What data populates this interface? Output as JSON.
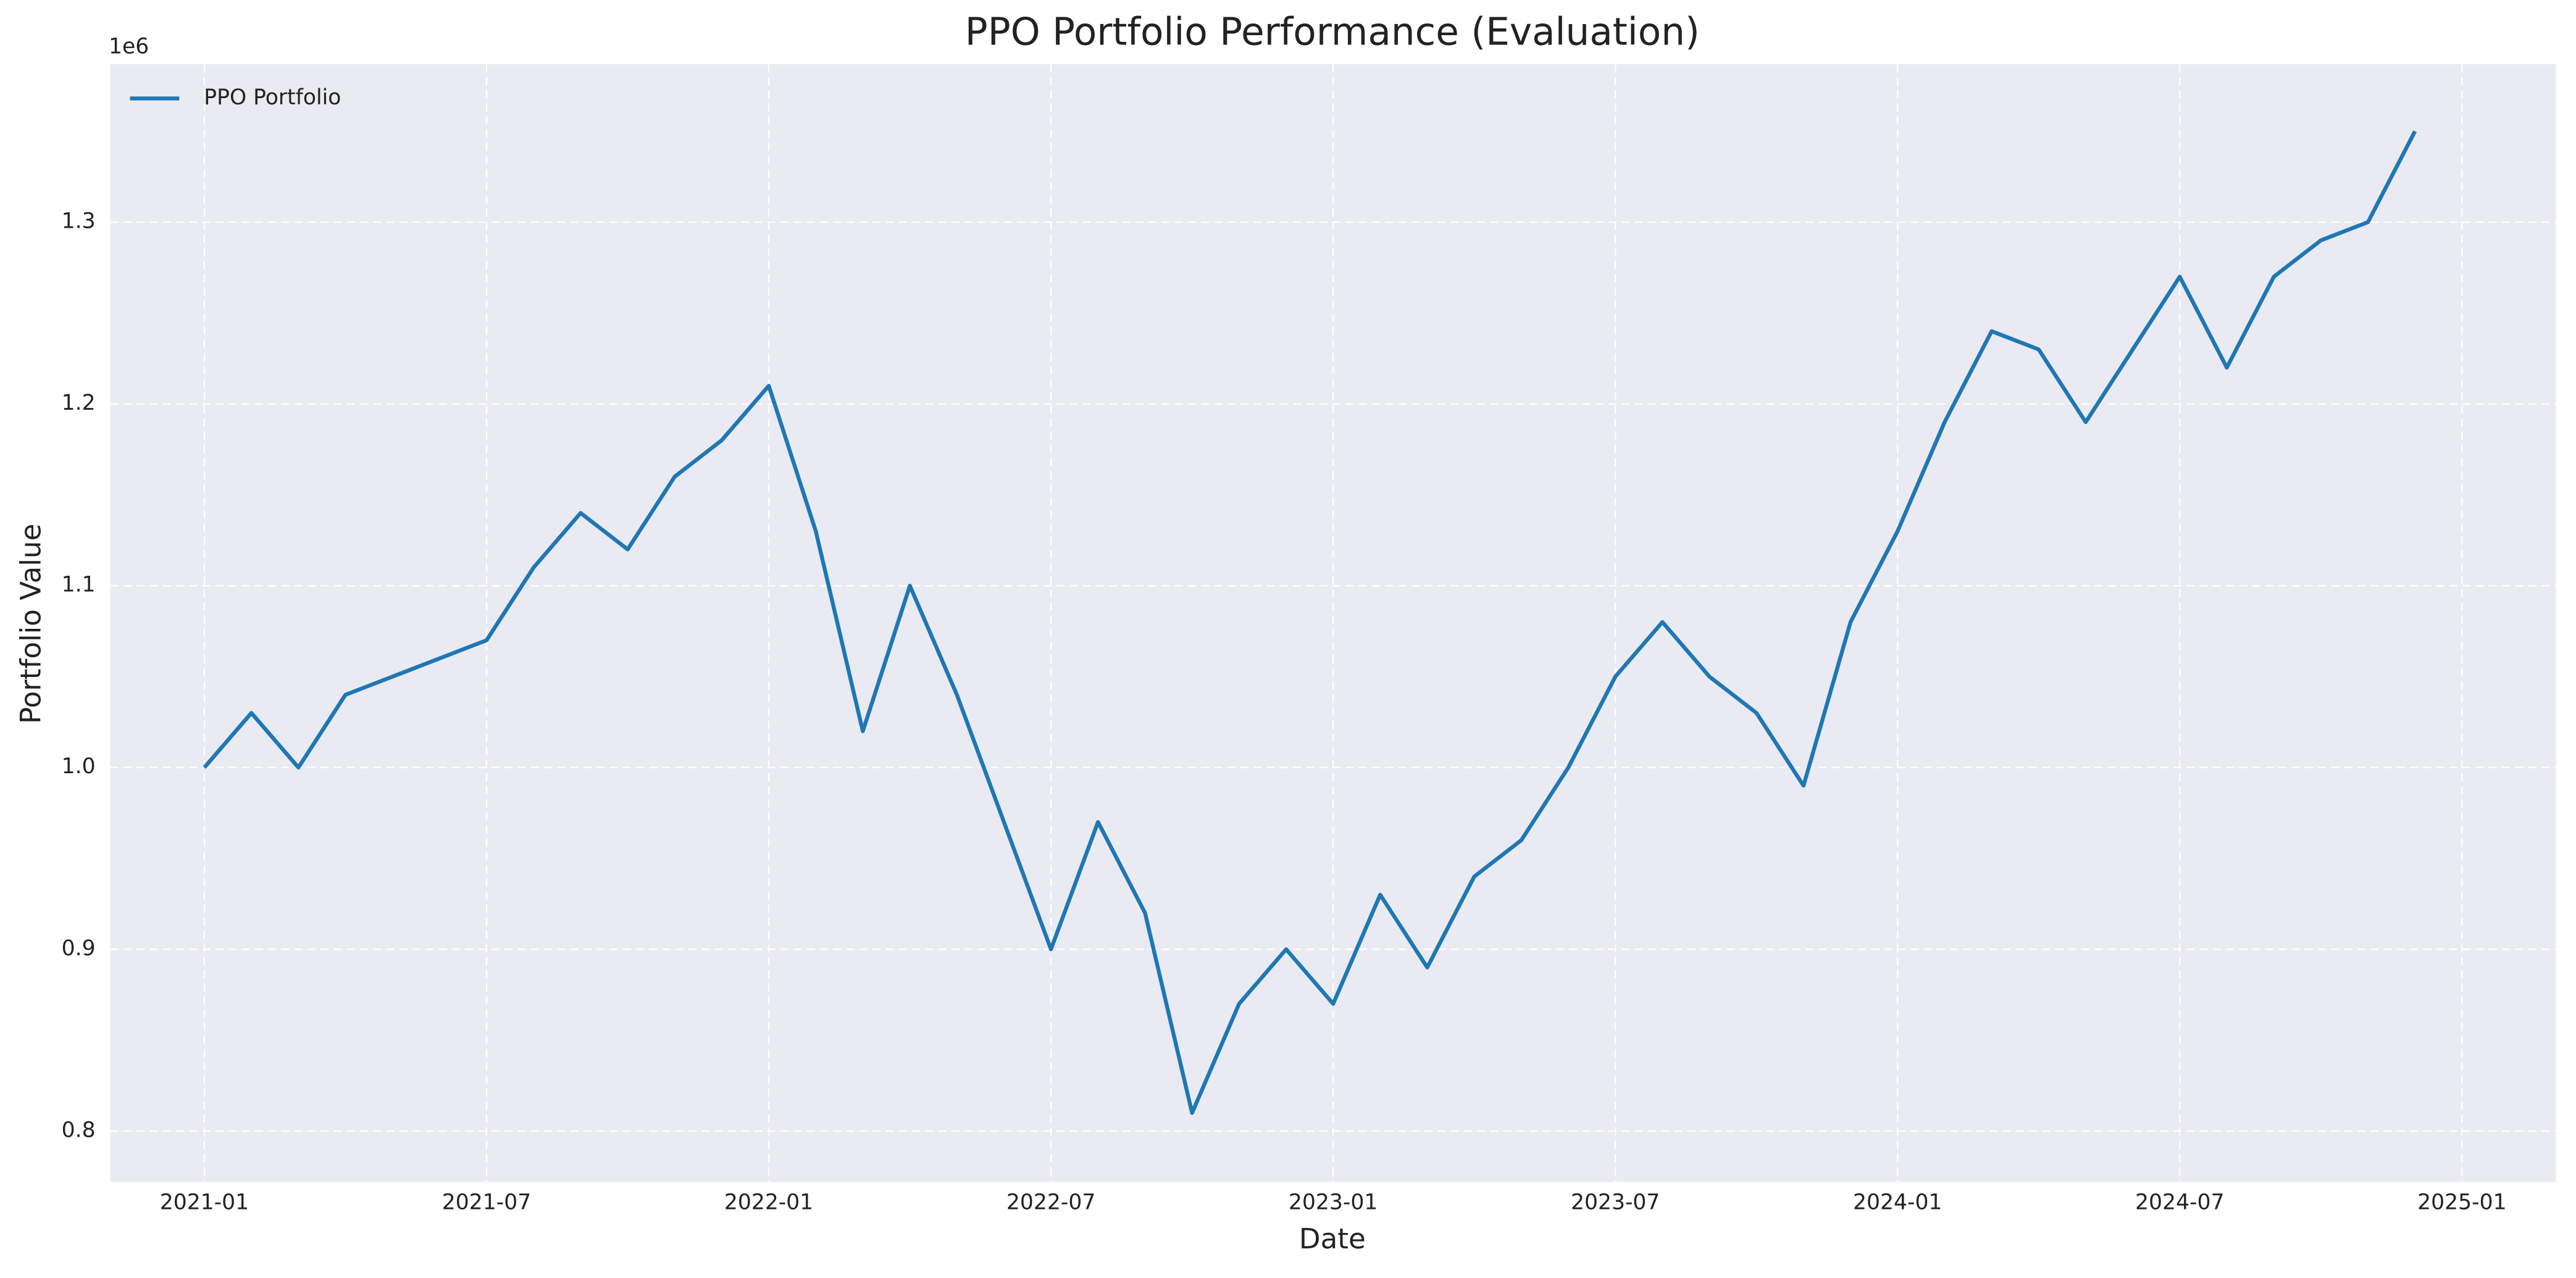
{
  "chart_data": {
    "type": "line",
    "title": "PPO Portfolio Performance (Evaluation)",
    "x_label": "Date",
    "y_label": "Portfolio Value",
    "y_offset_label": "1e6",
    "x": [
      "2021-01",
      "2021-02",
      "2021-03",
      "2021-04",
      "2021-05",
      "2021-06",
      "2021-07",
      "2021-08",
      "2021-09",
      "2021-10",
      "2021-11",
      "2021-12",
      "2022-01",
      "2022-02",
      "2022-03",
      "2022-04",
      "2022-05",
      "2022-06",
      "2022-07",
      "2022-08",
      "2022-09",
      "2022-10",
      "2022-11",
      "2022-12",
      "2023-01",
      "2023-02",
      "2023-03",
      "2023-04",
      "2023-05",
      "2023-06",
      "2023-07",
      "2023-08",
      "2023-09",
      "2023-10",
      "2023-11",
      "2023-12",
      "2024-01",
      "2024-02",
      "2024-03",
      "2024-04",
      "2024-05",
      "2024-06",
      "2024-07",
      "2024-08",
      "2024-09",
      "2024-10",
      "2024-11",
      "2024-12"
    ],
    "series": [
      {
        "name": "PPO Portfolio",
        "color": "#1f77b4",
        "values": [
          1.0,
          1.03,
          1.0,
          1.04,
          1.05,
          1.06,
          1.07,
          1.11,
          1.14,
          1.12,
          1.16,
          1.18,
          1.21,
          1.13,
          1.02,
          1.1,
          1.04,
          0.97,
          0.9,
          0.97,
          0.92,
          0.81,
          0.87,
          0.9,
          0.87,
          0.93,
          0.89,
          0.94,
          0.96,
          1.0,
          1.05,
          1.08,
          1.05,
          1.03,
          0.99,
          1.08,
          1.13,
          1.19,
          1.24,
          1.23,
          1.19,
          1.23,
          1.27,
          1.22,
          1.27,
          1.29,
          1.3,
          1.35
        ]
      }
    ],
    "xlim": [
      "2020-11",
      "2025-03"
    ],
    "xticks": [
      "2021-01",
      "2021-07",
      "2022-01",
      "2022-07",
      "2023-01",
      "2023-07",
      "2024-01",
      "2024-07",
      "2025-01"
    ],
    "ylim": [
      0.772,
      1.387
    ],
    "yticks": [
      0.8,
      0.9,
      {
        "value": 1,
        "label": "1.0"
      },
      1.1,
      1.2,
      1.3
    ],
    "grid": true,
    "legend": "upper left",
    "background": "#eaeaf2"
  }
}
